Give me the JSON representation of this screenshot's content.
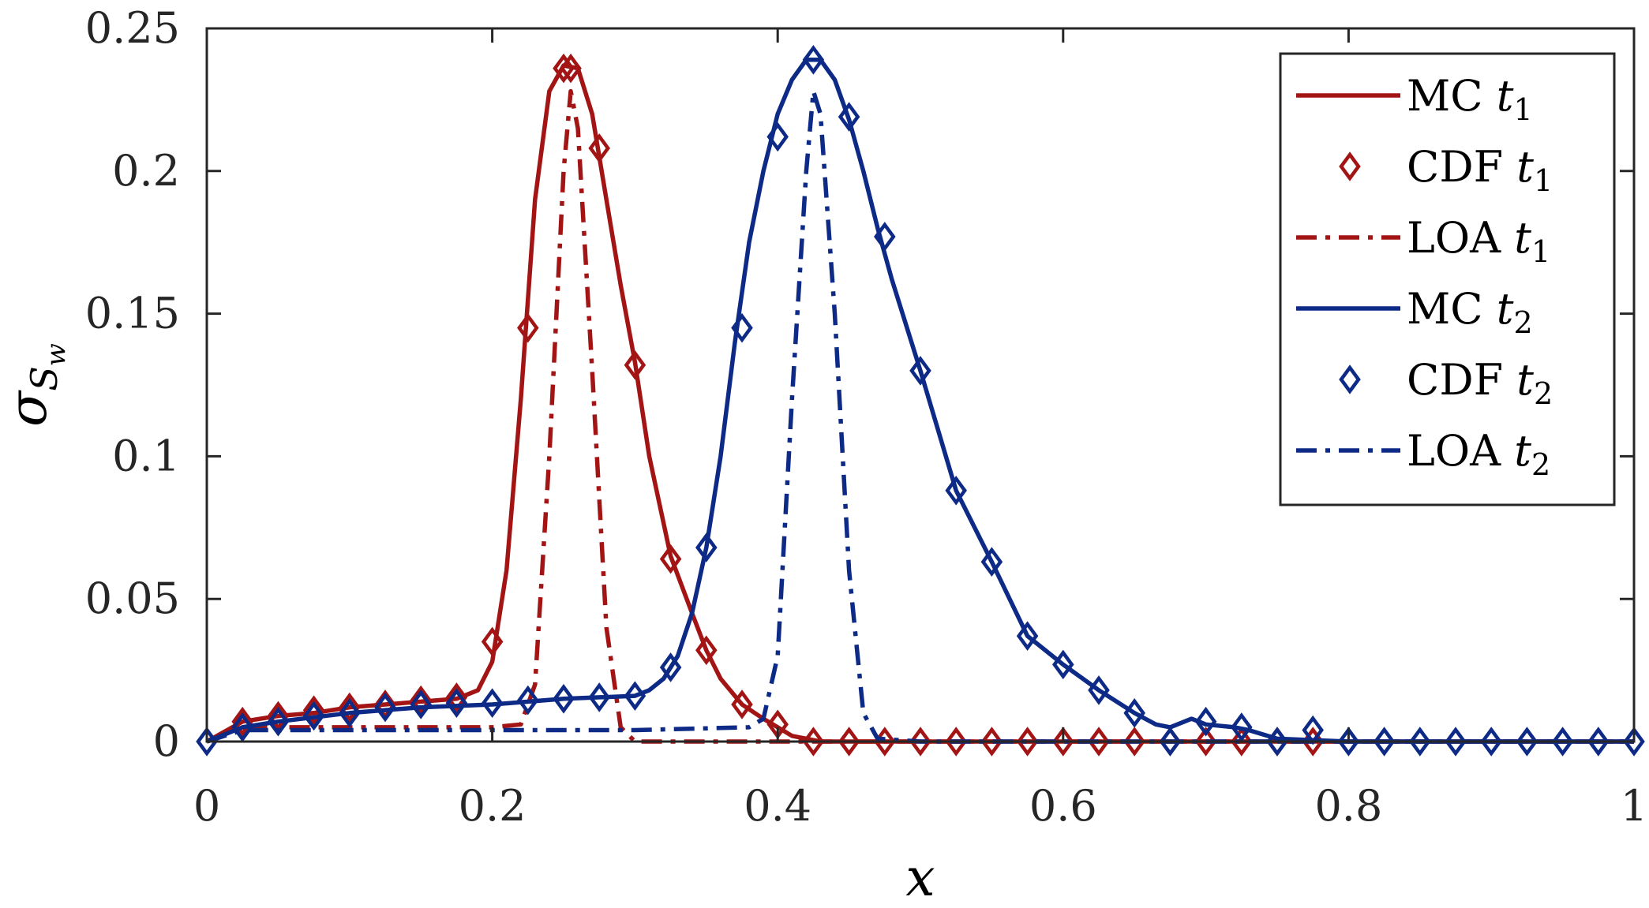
{
  "chart_data": {
    "type": "line",
    "xlabel": "x",
    "ylabel": "σ_Sw",
    "ylabel_main": "σ",
    "ylabel_sub": "S",
    "ylabel_subsub": "w",
    "xlim": [
      0,
      1
    ],
    "ylim": [
      0,
      0.25
    ],
    "xticks": [
      "0",
      "0.2",
      "0.4",
      "0.6",
      "0.8",
      "1"
    ],
    "xtick_values": [
      0,
      0.2,
      0.4,
      0.6,
      0.8,
      1
    ],
    "yticks": [
      "0",
      "0.05",
      "0.1",
      "0.15",
      "0.2",
      "0.25"
    ],
    "ytick_values": [
      0,
      0.05,
      0.1,
      0.15,
      0.2,
      0.25
    ],
    "grid": false,
    "legend_position": "top-right",
    "colors": {
      "t1": "#a31515",
      "t2": "#0d2a87"
    },
    "series": [
      {
        "name": "MC t1",
        "label": "MC",
        "sub": "1",
        "style": "solid",
        "group": "t1",
        "x": [
          0,
          0.025,
          0.05,
          0.075,
          0.1,
          0.125,
          0.15,
          0.175,
          0.19,
          0.2,
          0.21,
          0.22,
          0.23,
          0.24,
          0.25,
          0.26,
          0.27,
          0.28,
          0.29,
          0.3,
          0.31,
          0.325,
          0.34,
          0.35,
          0.36,
          0.375,
          0.39,
          0.4,
          0.41,
          0.43,
          0.5,
          1
        ],
        "y": [
          0,
          0.007,
          0.009,
          0.01,
          0.012,
          0.013,
          0.014,
          0.015,
          0.018,
          0.028,
          0.06,
          0.12,
          0.19,
          0.228,
          0.237,
          0.236,
          0.22,
          0.19,
          0.16,
          0.133,
          0.1,
          0.065,
          0.045,
          0.032,
          0.022,
          0.013,
          0.008,
          0.005,
          0.002,
          0,
          0,
          0
        ]
      },
      {
        "name": "CDF t1",
        "label": "CDF",
        "sub": "1",
        "style": "marker",
        "group": "t1",
        "x": [
          0.025,
          0.05,
          0.075,
          0.1,
          0.125,
          0.15,
          0.175,
          0.2,
          0.225,
          0.25,
          0.255,
          0.275,
          0.3,
          0.325,
          0.35,
          0.375,
          0.4,
          0.425,
          0.45,
          0.475,
          0.5,
          0.525,
          0.55,
          0.575,
          0.6,
          0.625,
          0.65,
          0.675,
          0.7,
          0.725,
          0.75,
          0.775
        ],
        "y": [
          0.007,
          0.009,
          0.011,
          0.012,
          0.013,
          0.0145,
          0.0155,
          0.035,
          0.145,
          0.236,
          0.236,
          0.208,
          0.132,
          0.064,
          0.032,
          0.013,
          0.006,
          0,
          0,
          0,
          0,
          0,
          0,
          0,
          0,
          0,
          0,
          0,
          0,
          0,
          0,
          0
        ]
      },
      {
        "name": "LOA t1",
        "label": "LOA",
        "sub": "1",
        "style": "dashdot",
        "group": "t1",
        "x": [
          0,
          0.025,
          0.1,
          0.2,
          0.22,
          0.23,
          0.24,
          0.25,
          0.255,
          0.26,
          0.27,
          0.28,
          0.29,
          0.3,
          0.35,
          1
        ],
        "y": [
          0,
          0.005,
          0.005,
          0.005,
          0.006,
          0.02,
          0.1,
          0.2,
          0.228,
          0.215,
          0.13,
          0.04,
          0.005,
          0,
          0,
          0
        ]
      },
      {
        "name": "MC t2",
        "label": "MC",
        "sub": "2",
        "style": "solid",
        "group": "t2",
        "x": [
          0,
          0.025,
          0.05,
          0.1,
          0.15,
          0.2,
          0.25,
          0.3,
          0.31,
          0.32,
          0.33,
          0.34,
          0.35,
          0.36,
          0.37,
          0.38,
          0.39,
          0.4,
          0.41,
          0.42,
          0.43,
          0.44,
          0.45,
          0.46,
          0.47,
          0.48,
          0.5,
          0.525,
          0.55,
          0.575,
          0.6,
          0.625,
          0.65,
          0.665,
          0.675,
          0.69,
          0.7,
          0.72,
          0.73,
          0.75,
          0.8,
          1
        ],
        "y": [
          0,
          0.005,
          0.007,
          0.01,
          0.012,
          0.013,
          0.015,
          0.016,
          0.018,
          0.022,
          0.03,
          0.045,
          0.068,
          0.1,
          0.14,
          0.175,
          0.2,
          0.22,
          0.232,
          0.239,
          0.239,
          0.232,
          0.218,
          0.2,
          0.18,
          0.162,
          0.13,
          0.088,
          0.063,
          0.037,
          0.027,
          0.018,
          0.01,
          0.006,
          0.005,
          0.008,
          0.006,
          0.005,
          0.004,
          0.001,
          0,
          0
        ]
      },
      {
        "name": "CDF t2",
        "label": "CDF",
        "sub": "2",
        "style": "marker",
        "group": "t2",
        "x": [
          0,
          0.025,
          0.05,
          0.075,
          0.1,
          0.125,
          0.15,
          0.175,
          0.2,
          0.225,
          0.25,
          0.275,
          0.3,
          0.325,
          0.35,
          0.375,
          0.4,
          0.425,
          0.45,
          0.475,
          0.5,
          0.525,
          0.55,
          0.575,
          0.6,
          0.625,
          0.65,
          0.675,
          0.7,
          0.725,
          0.75,
          0.775,
          0.8,
          0.825,
          0.85,
          0.875,
          0.9,
          0.925,
          0.95,
          0.975,
          1
        ],
        "y": [
          0,
          0.005,
          0.007,
          0.009,
          0.01,
          0.012,
          0.013,
          0.0135,
          0.0135,
          0.0145,
          0.015,
          0.0155,
          0.016,
          0.026,
          0.068,
          0.145,
          0.212,
          0.239,
          0.219,
          0.177,
          0.13,
          0.088,
          0.063,
          0.037,
          0.027,
          0.018,
          0.01,
          0.0,
          0.007,
          0.005,
          0.0,
          0.004,
          0,
          0,
          0,
          0,
          0,
          0,
          0,
          0,
          0
        ]
      },
      {
        "name": "LOA t2",
        "label": "LOA",
        "sub": "2",
        "style": "dashdot",
        "group": "t2",
        "x": [
          0,
          0.025,
          0.1,
          0.2,
          0.3,
          0.38,
          0.39,
          0.4,
          0.41,
          0.42,
          0.425,
          0.43,
          0.44,
          0.45,
          0.46,
          0.47,
          0.5,
          1
        ],
        "y": [
          0,
          0.004,
          0.004,
          0.004,
          0.004,
          0.005,
          0.008,
          0.03,
          0.12,
          0.2,
          0.228,
          0.22,
          0.15,
          0.06,
          0.01,
          0.001,
          0,
          0
        ]
      }
    ]
  }
}
